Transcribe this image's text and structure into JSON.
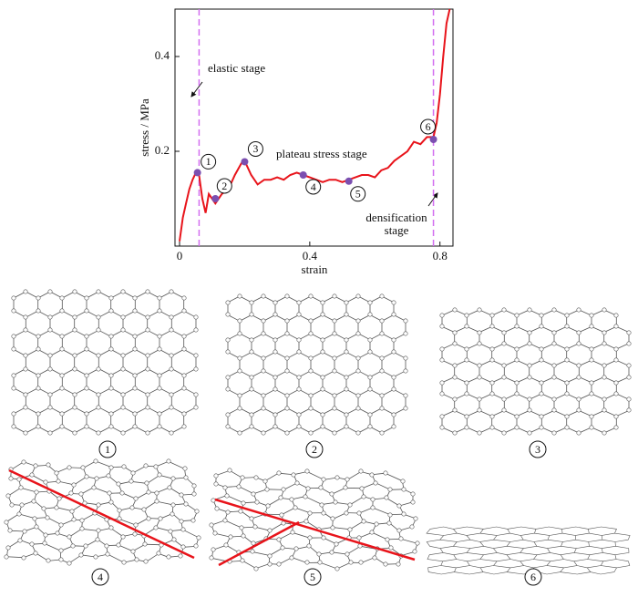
{
  "chart_data": {
    "type": "line",
    "x_label": "strain",
    "y_label": "stress / MPa",
    "xlim": [
      -0.014,
      0.84
    ],
    "ylim": [
      0,
      0.5
    ],
    "xticks": [
      0,
      0.4,
      0.8
    ],
    "yticks": [
      0.2,
      0.4
    ],
    "series": [
      {
        "color": "#e8141b",
        "x": [
          0,
          0.01,
          0.02,
          0.03,
          0.04,
          0.05,
          0.06,
          0.07,
          0.08,
          0.09,
          0.1,
          0.11,
          0.13,
          0.15,
          0.17,
          0.19,
          0.2,
          0.22,
          0.24,
          0.26,
          0.28,
          0.3,
          0.32,
          0.34,
          0.36,
          0.38,
          0.4,
          0.42,
          0.44,
          0.46,
          0.48,
          0.5,
          0.52,
          0.54,
          0.56,
          0.58,
          0.6,
          0.62,
          0.64,
          0.66,
          0.68,
          0.7,
          0.72,
          0.74,
          0.76,
          0.78,
          0.79,
          0.8,
          0.81,
          0.82,
          0.83
        ],
        "values": [
          0.01,
          0.06,
          0.09,
          0.12,
          0.14,
          0.155,
          0.15,
          0.1,
          0.07,
          0.11,
          0.1,
          0.09,
          0.11,
          0.12,
          0.15,
          0.175,
          0.18,
          0.15,
          0.13,
          0.14,
          0.14,
          0.145,
          0.14,
          0.15,
          0.155,
          0.15,
          0.145,
          0.14,
          0.135,
          0.14,
          0.14,
          0.135,
          0.14,
          0.145,
          0.15,
          0.15,
          0.145,
          0.16,
          0.165,
          0.18,
          0.19,
          0.2,
          0.22,
          0.215,
          0.23,
          0.23,
          0.26,
          0.32,
          0.4,
          0.47,
          0.5
        ]
      }
    ],
    "vlines": [
      0.06,
      0.78
    ],
    "vline_color": "#d36ef0",
    "points": [
      {
        "label": "1",
        "x": 0.055,
        "y": 0.155
      },
      {
        "label": "2",
        "x": 0.11,
        "y": 0.1
      },
      {
        "label": "3",
        "x": 0.2,
        "y": 0.178
      },
      {
        "label": "4",
        "x": 0.38,
        "y": 0.15
      },
      {
        "label": "5",
        "x": 0.52,
        "y": 0.137
      },
      {
        "label": "6",
        "x": 0.78,
        "y": 0.225
      }
    ],
    "point_color": "#7b4fb0",
    "annotations": [
      "elastic stage",
      "plateau stress stage",
      "densification",
      "stage"
    ]
  },
  "panels": [
    {
      "label": "1"
    },
    {
      "label": "2"
    },
    {
      "label": "3"
    },
    {
      "label": "4"
    },
    {
      "label": "5"
    },
    {
      "label": "6"
    }
  ]
}
